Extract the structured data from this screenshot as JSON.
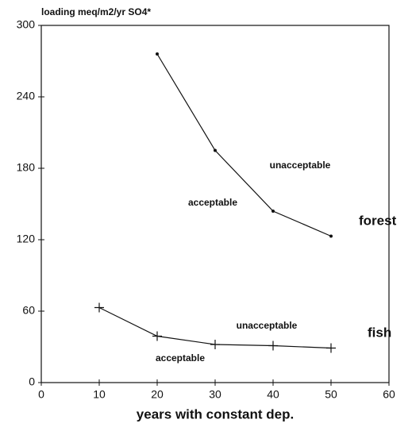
{
  "chart_data": {
    "type": "line",
    "y_label": "loading meq/m2/yr SO4*",
    "x_label": "years with constant dep.",
    "xlim": [
      0,
      60
    ],
    "xticks": [
      0,
      10,
      20,
      30,
      40,
      50,
      60
    ],
    "ylim": [
      0,
      300
    ],
    "yticks": [
      0,
      60,
      120,
      180,
      240,
      300
    ],
    "series": [
      {
        "name": "forest",
        "color": "#111111",
        "marker": "dot",
        "x": [
          20,
          30,
          40,
          50
        ],
        "values": [
          276,
          195,
          144,
          123
        ]
      },
      {
        "name": "fish",
        "color": "#111111",
        "marker": "plus",
        "x": [
          10,
          20,
          30,
          40,
          50
        ],
        "values": [
          63,
          39,
          32,
          31,
          29
        ]
      }
    ],
    "annotations": [
      "unacceptable",
      "acceptable",
      "unacceptable",
      "acceptable"
    ]
  }
}
